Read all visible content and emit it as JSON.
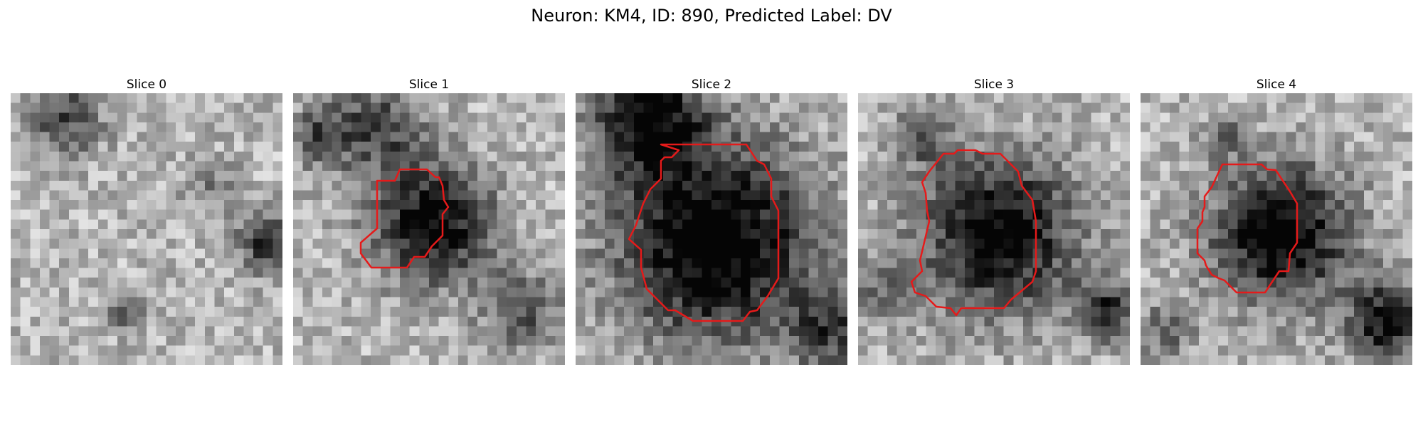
{
  "title": "Neuron: KM4, ID: 890, Predicted Label: DV",
  "colors": {
    "contour": "#e51a1a",
    "background": "#ffffff"
  },
  "slices": [
    {
      "label": "Slice 0",
      "has_contour": false,
      "image_description_key": "grayscale-em-slice"
    },
    {
      "label": "Slice 1",
      "has_contour": true
    },
    {
      "label": "Slice 2",
      "has_contour": true
    },
    {
      "label": "Slice 3",
      "has_contour": true
    },
    {
      "label": "Slice 4",
      "has_contour": true
    }
  ]
}
